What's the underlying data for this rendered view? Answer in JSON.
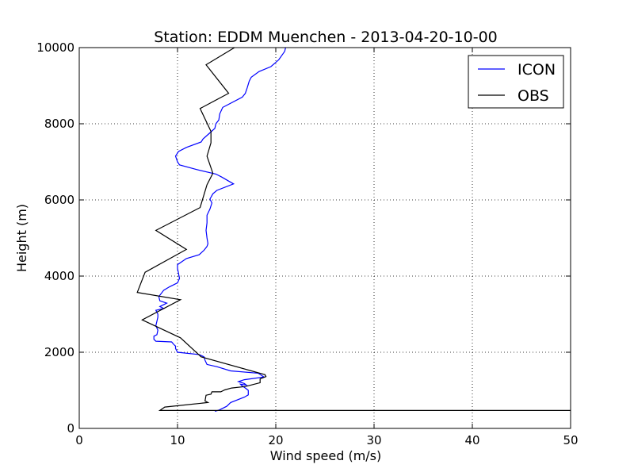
{
  "chart_data": {
    "type": "line",
    "title": "Station: EDDM Muenchen - 2013-04-20-10-00",
    "xlabel": "Wind speed (m/s)",
    "ylabel": "Height (m)",
    "xlim": [
      0,
      50
    ],
    "ylim": [
      0,
      10000
    ],
    "xticks": [
      0,
      10,
      20,
      30,
      40,
      50
    ],
    "yticks": [
      0,
      2000,
      4000,
      6000,
      8000,
      10000
    ],
    "grid": true,
    "legend": "top-right",
    "series": [
      {
        "name": "ICON",
        "color": "#0000ff",
        "points": [
          [
            13.8,
            450
          ],
          [
            14.2,
            480
          ],
          [
            15.0,
            580
          ],
          [
            15.4,
            680
          ],
          [
            16.8,
            820
          ],
          [
            17.2,
            880
          ],
          [
            17.2,
            1000
          ],
          [
            16.9,
            1060
          ],
          [
            16.6,
            1110
          ],
          [
            16.4,
            1160
          ],
          [
            17.0,
            1140
          ],
          [
            16.8,
            1180
          ],
          [
            16.2,
            1230
          ],
          [
            16.8,
            1280
          ],
          [
            18.8,
            1350
          ],
          [
            18.2,
            1450
          ],
          [
            15.4,
            1510
          ],
          [
            14.0,
            1620
          ],
          [
            13.0,
            1680
          ],
          [
            12.8,
            1790
          ],
          [
            12.7,
            1880
          ],
          [
            12.2,
            1940
          ],
          [
            10.0,
            2000
          ],
          [
            9.8,
            2100
          ],
          [
            9.8,
            2160
          ],
          [
            9.6,
            2210
          ],
          [
            9.4,
            2270
          ],
          [
            7.8,
            2290
          ],
          [
            7.6,
            2340
          ],
          [
            7.6,
            2420
          ],
          [
            7.9,
            2460
          ],
          [
            8.0,
            2580
          ],
          [
            7.8,
            2700
          ],
          [
            8.0,
            2920
          ],
          [
            8.0,
            3000
          ],
          [
            7.8,
            3100
          ],
          [
            8.6,
            3150
          ],
          [
            8.2,
            3200
          ],
          [
            8.9,
            3290
          ],
          [
            8.2,
            3350
          ],
          [
            8.1,
            3460
          ],
          [
            8.6,
            3630
          ],
          [
            9.2,
            3720
          ],
          [
            10.0,
            3820
          ],
          [
            10.2,
            3940
          ],
          [
            10.1,
            4080
          ],
          [
            10.0,
            4200
          ],
          [
            10.0,
            4300
          ],
          [
            10.9,
            4460
          ],
          [
            12.2,
            4560
          ],
          [
            12.7,
            4680
          ],
          [
            13.0,
            4780
          ],
          [
            13.1,
            4850
          ],
          [
            13.0,
            5000
          ],
          [
            12.9,
            5200
          ],
          [
            13.0,
            5400
          ],
          [
            13.0,
            5600
          ],
          [
            13.3,
            5760
          ],
          [
            13.5,
            5920
          ],
          [
            13.3,
            6020
          ],
          [
            13.6,
            6160
          ],
          [
            14.0,
            6250
          ],
          [
            15.7,
            6420
          ],
          [
            14.5,
            6600
          ],
          [
            13.9,
            6680
          ],
          [
            11.9,
            6800
          ],
          [
            10.2,
            6920
          ],
          [
            10.0,
            7000
          ],
          [
            9.8,
            7150
          ],
          [
            10.1,
            7270
          ],
          [
            10.9,
            7380
          ],
          [
            12.4,
            7520
          ],
          [
            12.6,
            7600
          ],
          [
            13.2,
            7740
          ],
          [
            13.8,
            7880
          ],
          [
            13.9,
            8000
          ],
          [
            14.2,
            8100
          ],
          [
            14.3,
            8260
          ],
          [
            14.6,
            8430
          ],
          [
            16.6,
            8700
          ],
          [
            16.9,
            8800
          ],
          [
            17.1,
            8950
          ],
          [
            17.3,
            9120
          ],
          [
            17.5,
            9220
          ],
          [
            18.3,
            9370
          ],
          [
            19.5,
            9500
          ],
          [
            20.3,
            9680
          ],
          [
            20.9,
            9900
          ],
          [
            21.0,
            10000
          ]
        ]
      },
      {
        "name": "OBS",
        "color": "#000000",
        "points": [
          [
            50.0,
            470
          ],
          [
            8.2,
            470
          ],
          [
            8.7,
            560
          ],
          [
            13.1,
            680
          ],
          [
            12.8,
            720
          ],
          [
            12.9,
            870
          ],
          [
            13.4,
            900
          ],
          [
            13.5,
            960
          ],
          [
            14.4,
            960
          ],
          [
            14.8,
            1010
          ],
          [
            15.5,
            1060
          ],
          [
            16.9,
            1100
          ],
          [
            18.4,
            1200
          ],
          [
            18.4,
            1300
          ],
          [
            19.0,
            1360
          ],
          [
            18.9,
            1410
          ],
          [
            12.4,
            1880
          ],
          [
            10.3,
            2380
          ],
          [
            6.4,
            2850
          ],
          [
            10.3,
            3380
          ],
          [
            5.9,
            3570
          ],
          [
            6.7,
            4100
          ],
          [
            10.9,
            4700
          ],
          [
            7.8,
            5200
          ],
          [
            12.3,
            5800
          ],
          [
            13.0,
            6400
          ],
          [
            13.6,
            6700
          ],
          [
            13.0,
            7150
          ],
          [
            13.4,
            7500
          ],
          [
            13.4,
            7800
          ],
          [
            12.3,
            8400
          ],
          [
            15.2,
            8800
          ],
          [
            12.9,
            9550
          ],
          [
            15.8,
            10000
          ]
        ]
      }
    ]
  }
}
